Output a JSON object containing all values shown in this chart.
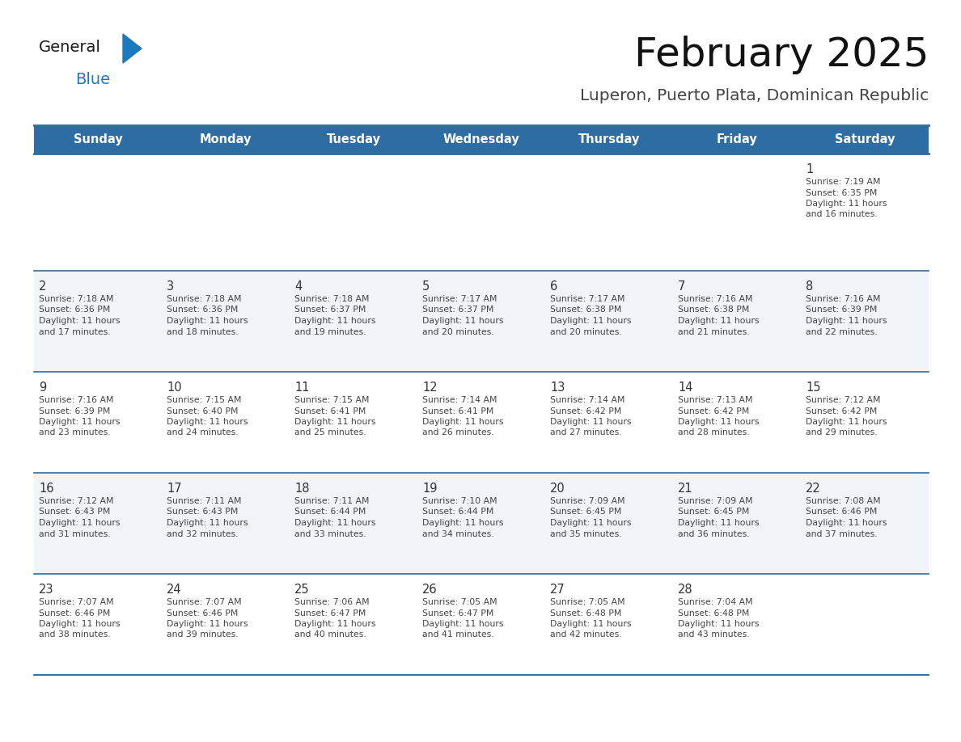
{
  "title": "February 2025",
  "subtitle": "Luperon, Puerto Plata, Dominican Republic",
  "header_bg_color": "#2E6DA4",
  "header_text_color": "#FFFFFF",
  "header_days": [
    "Sunday",
    "Monday",
    "Tuesday",
    "Wednesday",
    "Thursday",
    "Friday",
    "Saturday"
  ],
  "row_bg_colors": [
    "#FFFFFF",
    "#F0F4F8",
    "#FFFFFF",
    "#F0F4F8",
    "#FFFFFF"
  ],
  "cell_border_color": "#2E6DA4",
  "day_number_color": "#333333",
  "cell_text_color": "#444444",
  "logo_general_color": "#1A1A1A",
  "logo_blue_color": "#1A7AC0",
  "weeks": [
    [
      null,
      null,
      null,
      null,
      null,
      null,
      {
        "day": 1,
        "sunrise": "7:19 AM",
        "sunset": "6:35 PM",
        "daylight": "11 hours\nand 16 minutes."
      }
    ],
    [
      {
        "day": 2,
        "sunrise": "7:18 AM",
        "sunset": "6:36 PM",
        "daylight": "11 hours\nand 17 minutes."
      },
      {
        "day": 3,
        "sunrise": "7:18 AM",
        "sunset": "6:36 PM",
        "daylight": "11 hours\nand 18 minutes."
      },
      {
        "day": 4,
        "sunrise": "7:18 AM",
        "sunset": "6:37 PM",
        "daylight": "11 hours\nand 19 minutes."
      },
      {
        "day": 5,
        "sunrise": "7:17 AM",
        "sunset": "6:37 PM",
        "daylight": "11 hours\nand 20 minutes."
      },
      {
        "day": 6,
        "sunrise": "7:17 AM",
        "sunset": "6:38 PM",
        "daylight": "11 hours\nand 20 minutes."
      },
      {
        "day": 7,
        "sunrise": "7:16 AM",
        "sunset": "6:38 PM",
        "daylight": "11 hours\nand 21 minutes."
      },
      {
        "day": 8,
        "sunrise": "7:16 AM",
        "sunset": "6:39 PM",
        "daylight": "11 hours\nand 22 minutes."
      }
    ],
    [
      {
        "day": 9,
        "sunrise": "7:16 AM",
        "sunset": "6:39 PM",
        "daylight": "11 hours\nand 23 minutes."
      },
      {
        "day": 10,
        "sunrise": "7:15 AM",
        "sunset": "6:40 PM",
        "daylight": "11 hours\nand 24 minutes."
      },
      {
        "day": 11,
        "sunrise": "7:15 AM",
        "sunset": "6:41 PM",
        "daylight": "11 hours\nand 25 minutes."
      },
      {
        "day": 12,
        "sunrise": "7:14 AM",
        "sunset": "6:41 PM",
        "daylight": "11 hours\nand 26 minutes."
      },
      {
        "day": 13,
        "sunrise": "7:14 AM",
        "sunset": "6:42 PM",
        "daylight": "11 hours\nand 27 minutes."
      },
      {
        "day": 14,
        "sunrise": "7:13 AM",
        "sunset": "6:42 PM",
        "daylight": "11 hours\nand 28 minutes."
      },
      {
        "day": 15,
        "sunrise": "7:12 AM",
        "sunset": "6:42 PM",
        "daylight": "11 hours\nand 29 minutes."
      }
    ],
    [
      {
        "day": 16,
        "sunrise": "7:12 AM",
        "sunset": "6:43 PM",
        "daylight": "11 hours\nand 31 minutes."
      },
      {
        "day": 17,
        "sunrise": "7:11 AM",
        "sunset": "6:43 PM",
        "daylight": "11 hours\nand 32 minutes."
      },
      {
        "day": 18,
        "sunrise": "7:11 AM",
        "sunset": "6:44 PM",
        "daylight": "11 hours\nand 33 minutes."
      },
      {
        "day": 19,
        "sunrise": "7:10 AM",
        "sunset": "6:44 PM",
        "daylight": "11 hours\nand 34 minutes."
      },
      {
        "day": 20,
        "sunrise": "7:09 AM",
        "sunset": "6:45 PM",
        "daylight": "11 hours\nand 35 minutes."
      },
      {
        "day": 21,
        "sunrise": "7:09 AM",
        "sunset": "6:45 PM",
        "daylight": "11 hours\nand 36 minutes."
      },
      {
        "day": 22,
        "sunrise": "7:08 AM",
        "sunset": "6:46 PM",
        "daylight": "11 hours\nand 37 minutes."
      }
    ],
    [
      {
        "day": 23,
        "sunrise": "7:07 AM",
        "sunset": "6:46 PM",
        "daylight": "11 hours\nand 38 minutes."
      },
      {
        "day": 24,
        "sunrise": "7:07 AM",
        "sunset": "6:46 PM",
        "daylight": "11 hours\nand 39 minutes."
      },
      {
        "day": 25,
        "sunrise": "7:06 AM",
        "sunset": "6:47 PM",
        "daylight": "11 hours\nand 40 minutes."
      },
      {
        "day": 26,
        "sunrise": "7:05 AM",
        "sunset": "6:47 PM",
        "daylight": "11 hours\nand 41 minutes."
      },
      {
        "day": 27,
        "sunrise": "7:05 AM",
        "sunset": "6:48 PM",
        "daylight": "11 hours\nand 42 minutes."
      },
      {
        "day": 28,
        "sunrise": "7:04 AM",
        "sunset": "6:48 PM",
        "daylight": "11 hours\nand 43 minutes."
      },
      null
    ]
  ],
  "fig_width": 11.88,
  "fig_height": 9.18,
  "dpi": 100
}
